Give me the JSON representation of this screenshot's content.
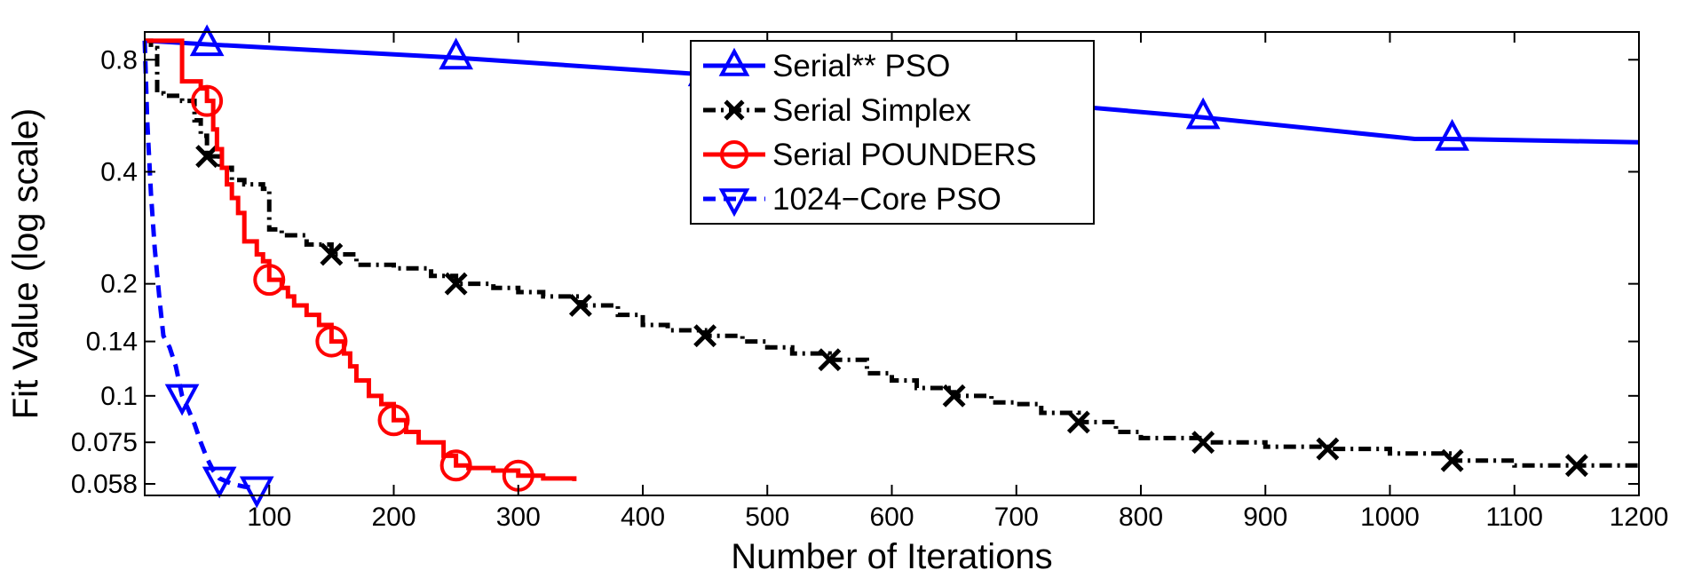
{
  "chart_data": {
    "type": "line",
    "xlabel": "Number of Iterations",
    "ylabel": "Fit Value (log scale)",
    "xlim": [
      0,
      1200
    ],
    "ylim": [
      0.054,
      0.95
    ],
    "yscale": "log",
    "grid": false,
    "legend_position": "top-center",
    "x_ticks": [
      100,
      200,
      300,
      400,
      500,
      600,
      700,
      800,
      900,
      1000,
      1100,
      1200
    ],
    "y_ticks": [
      0.058,
      0.075,
      0.1,
      0.14,
      0.2,
      0.4,
      0.8
    ],
    "x_tick_labels": [
      "100",
      "200",
      "300",
      "400",
      "500",
      "600",
      "700",
      "800",
      "900",
      "1000",
      "1100",
      "1200"
    ],
    "y_tick_labels": [
      "0.058",
      "0.075",
      "0.1",
      "0.14",
      "0.2",
      "0.4",
      "0.8"
    ],
    "series": [
      {
        "name": "Serial** PSO",
        "color": "#0000ff",
        "line_style": "solid",
        "marker": "triangle-up",
        "step": false,
        "x": [
          0,
          50,
          250,
          450,
          650,
          850,
          1020,
          1050,
          1200
        ],
        "y": [
          0.9,
          0.88,
          0.81,
          0.73,
          0.64,
          0.56,
          0.49,
          0.49,
          0.48
        ],
        "marker_x": [
          50,
          250,
          450,
          650,
          850,
          1050
        ]
      },
      {
        "name": "Serial Simplex",
        "color": "#000000",
        "line_style": "dashdot",
        "marker": "x",
        "step": true,
        "x": [
          0,
          5,
          10,
          15,
          30,
          40,
          45,
          50,
          60,
          70,
          80,
          95,
          100,
          110,
          130,
          150,
          170,
          200,
          230,
          250,
          280,
          300,
          320,
          350,
          380,
          400,
          420,
          450,
          480,
          500,
          520,
          550,
          580,
          600,
          620,
          650,
          680,
          700,
          720,
          750,
          780,
          800,
          850,
          900,
          950,
          1000,
          1050,
          1100,
          1150,
          1200
        ],
        "y": [
          0.9,
          0.86,
          0.65,
          0.64,
          0.62,
          0.55,
          0.5,
          0.44,
          0.41,
          0.38,
          0.37,
          0.36,
          0.28,
          0.27,
          0.255,
          0.24,
          0.225,
          0.22,
          0.21,
          0.2,
          0.195,
          0.19,
          0.185,
          0.175,
          0.165,
          0.155,
          0.15,
          0.145,
          0.14,
          0.135,
          0.13,
          0.125,
          0.115,
          0.11,
          0.105,
          0.1,
          0.096,
          0.095,
          0.09,
          0.085,
          0.08,
          0.077,
          0.075,
          0.073,
          0.072,
          0.07,
          0.067,
          0.065,
          0.065,
          0.065
        ],
        "marker_x": [
          50,
          150,
          250,
          350,
          450,
          550,
          650,
          750,
          850,
          950,
          1050,
          1150
        ]
      },
      {
        "name": "Serial POUNDERS",
        "color": "#ff0000",
        "line_style": "solid",
        "marker": "circle",
        "step": true,
        "x": [
          0,
          20,
          30,
          40,
          45,
          50,
          55,
          58,
          62,
          66,
          70,
          75,
          80,
          90,
          95,
          100,
          110,
          115,
          120,
          130,
          140,
          150,
          160,
          165,
          170,
          180,
          190,
          200,
          210,
          220,
          240,
          250,
          260,
          280,
          300,
          320,
          345
        ],
        "y": [
          0.9,
          0.9,
          0.7,
          0.7,
          0.67,
          0.62,
          0.52,
          0.46,
          0.41,
          0.37,
          0.34,
          0.31,
          0.26,
          0.24,
          0.23,
          0.205,
          0.195,
          0.185,
          0.175,
          0.165,
          0.155,
          0.14,
          0.13,
          0.12,
          0.11,
          0.1,
          0.095,
          0.086,
          0.08,
          0.075,
          0.069,
          0.065,
          0.064,
          0.063,
          0.061,
          0.06,
          0.059
        ],
        "marker_x": [
          50,
          100,
          150,
          200,
          250,
          300
        ]
      },
      {
        "name": "1024−Core PSO",
        "color": "#0000ff",
        "line_style": "dashed",
        "marker": "triangle-down",
        "step": false,
        "x": [
          0,
          2,
          5,
          8,
          12,
          15,
          20,
          25,
          30,
          35,
          40,
          45,
          50,
          55,
          60,
          70,
          80,
          90
        ],
        "y": [
          0.9,
          0.55,
          0.35,
          0.25,
          0.18,
          0.145,
          0.135,
          0.12,
          0.1,
          0.092,
          0.084,
          0.075,
          0.068,
          0.063,
          0.06,
          0.058,
          0.057,
          0.0565
        ],
        "marker_x": [
          30,
          60,
          90
        ]
      }
    ]
  }
}
